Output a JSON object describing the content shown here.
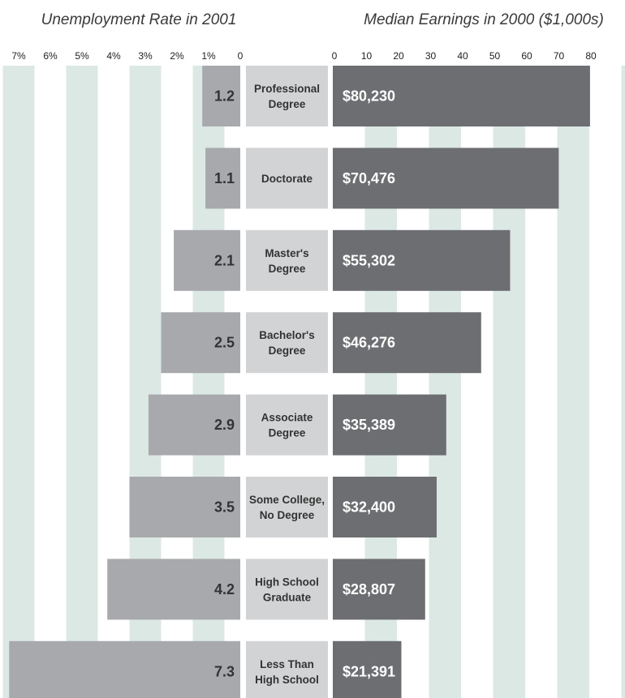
{
  "chart_data": [
    {
      "type": "bar",
      "title": "Unemployment Rate in 2001",
      "orientation": "horizontal",
      "direction": "leftward",
      "tick_labels": [
        "7%",
        "6%",
        "5%",
        "4%",
        "3%",
        "2%",
        "1%",
        "0"
      ],
      "xlim": [
        0,
        7.5
      ],
      "categories": [
        "Professional Degree",
        "Doctorate",
        "Master's Degree",
        "Bachelor's Degree",
        "Associate Degree",
        "Some College, No Degree",
        "High School Graduate",
        "Less Than High School"
      ],
      "values": [
        1.2,
        1.1,
        2.1,
        2.5,
        2.9,
        3.5,
        4.2,
        7.3
      ],
      "value_labels": [
        "1.2",
        "1.1",
        "2.1",
        "2.5",
        "2.9",
        "3.5",
        "4.2",
        "7.3"
      ],
      "bar_color": "#a7a9ac"
    },
    {
      "type": "bar",
      "title": "Median Earnings in 2000 ($1,000s)",
      "orientation": "horizontal",
      "direction": "rightward",
      "tick_labels": [
        "0",
        "10",
        "20",
        "30",
        "40",
        "50",
        "60",
        "70",
        "80"
      ],
      "xlim": [
        0,
        90
      ],
      "categories": [
        "Professional Degree",
        "Doctorate",
        "Master's Degree",
        "Bachelor's Degree",
        "Associate Degree",
        "Some College, No Degree",
        "High School Graduate",
        "Less Than High School"
      ],
      "values": [
        80.23,
        70.476,
        55.302,
        46.276,
        35.389,
        32.4,
        28.807,
        21.391
      ],
      "value_labels": [
        "$80,230",
        "$70,476",
        "$55,302",
        "$46,276",
        "$35,389",
        "$32,400",
        "$28,807",
        "$21,391"
      ],
      "bar_color": "#6d6e71"
    }
  ],
  "category_lines": [
    [
      "Professional",
      "Degree"
    ],
    [
      "Doctorate"
    ],
    [
      "Master's",
      "Degree"
    ],
    [
      "Bachelor's",
      "Degree"
    ],
    [
      "Associate",
      "Degree"
    ],
    [
      "Some College,",
      "No Degree"
    ],
    [
      "High School",
      "Graduate"
    ],
    [
      "Less Than",
      "High School"
    ]
  ],
  "colors": {
    "grid_band": "#dbe8e3",
    "label_box": "#d1d3d4",
    "unemployment_bar": "#a7a9ac",
    "earnings_bar": "#6d6e71"
  }
}
